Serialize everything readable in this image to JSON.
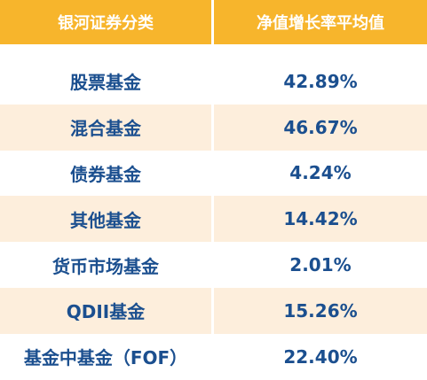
{
  "table": {
    "header": [
      "银河证券分类",
      "净值增长率平均值"
    ],
    "rows": [
      [
        "股票基金",
        "42.89%"
      ],
      [
        "混合基金",
        "46.67%"
      ],
      [
        "债券基金",
        "4.24%"
      ],
      [
        "其他基金",
        "14.42%"
      ],
      [
        "货币市场基金",
        "2.01%"
      ],
      [
        "QDII基金",
        "15.26%"
      ],
      [
        "基金中基金（FOF）",
        "22.40%"
      ]
    ]
  }
}
